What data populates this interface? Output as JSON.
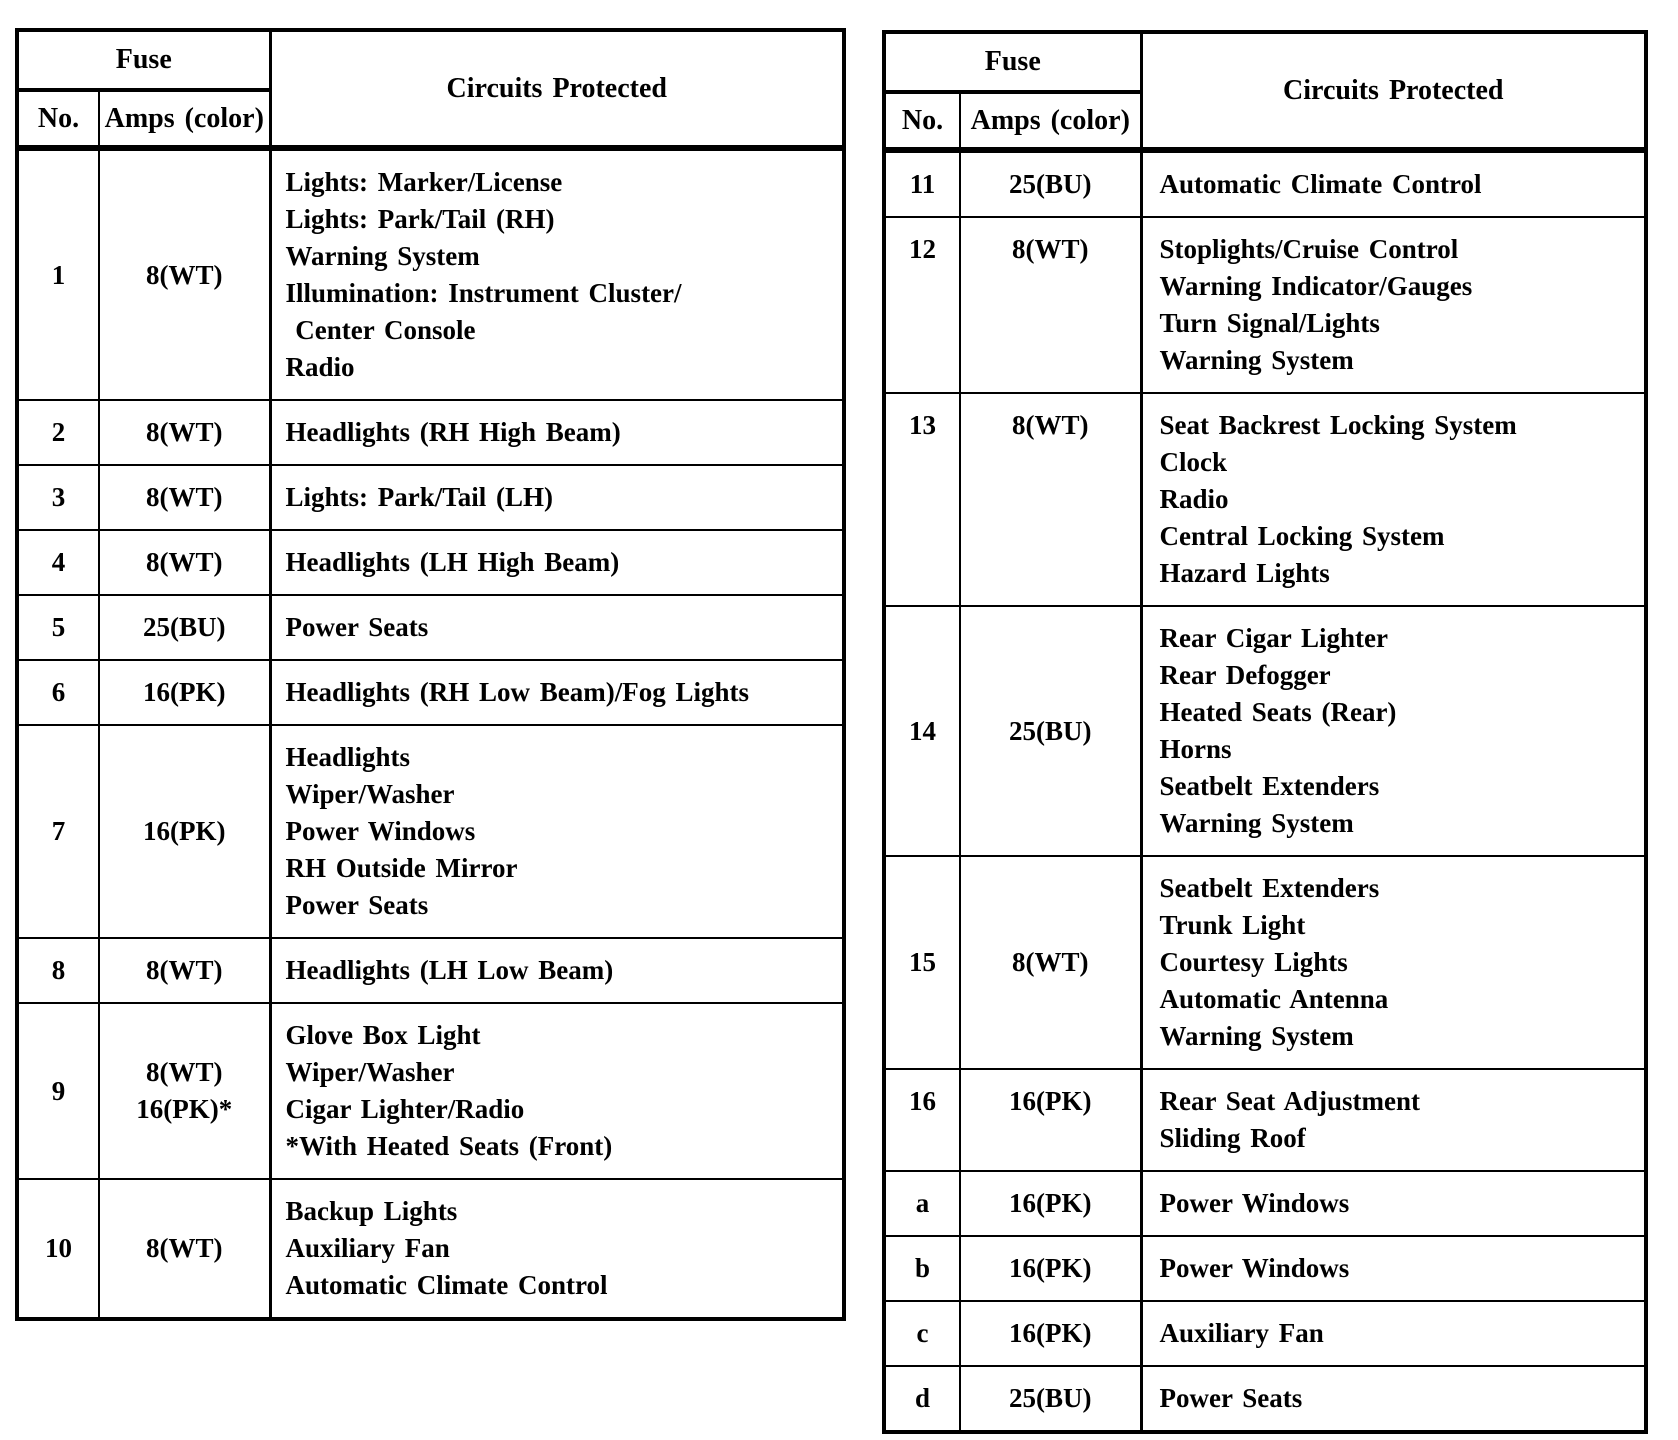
{
  "page": {
    "background_color": "#ffffff",
    "ink_color": "#000000",
    "description": "Scanned fuse box chart, two tables"
  },
  "tables": [
    {
      "name": "fuse-table-left",
      "header": {
        "fuse": "Fuse",
        "no": "No.",
        "amps": "Amps (color)",
        "circuits": "Circuits Protected"
      },
      "rows": [
        {
          "no": "1",
          "amps": [
            "8(WT)"
          ],
          "circuits": [
            "Lights: Marker/License",
            "Lights: Park/Tail (RH)",
            "Warning System",
            "Illumination: Instrument Cluster/",
            " Center Console",
            "Radio"
          ]
        },
        {
          "no": "2",
          "amps": [
            "8(WT)"
          ],
          "circuits": [
            "Headlights (RH High Beam)"
          ]
        },
        {
          "no": "3",
          "amps": [
            "8(WT)"
          ],
          "circuits": [
            "Lights: Park/Tail (LH)"
          ]
        },
        {
          "no": "4",
          "amps": [
            "8(WT)"
          ],
          "circuits": [
            "Headlights (LH High Beam)"
          ]
        },
        {
          "no": "5",
          "amps": [
            "25(BU)"
          ],
          "circuits": [
            "Power Seats"
          ]
        },
        {
          "no": "6",
          "amps": [
            "16(PK)"
          ],
          "circuits": [
            "Headlights (RH Low Beam)/Fog Lights"
          ]
        },
        {
          "no": "7",
          "amps": [
            "16(PK)"
          ],
          "circuits": [
            "Headlights",
            "Wiper/Washer",
            "Power Windows",
            "RH Outside Mirror",
            "Power Seats"
          ]
        },
        {
          "no": "8",
          "amps": [
            "8(WT)"
          ],
          "circuits": [
            "Headlights (LH Low Beam)"
          ]
        },
        {
          "no": "9",
          "amps": [
            "8(WT)",
            "16(PK)*"
          ],
          "circuits": [
            "Glove Box Light",
            "Wiper/Washer",
            "Cigar Lighter/Radio",
            "*With Heated Seats (Front)"
          ]
        },
        {
          "no": "10",
          "amps": [
            "8(WT)"
          ],
          "circuits": [
            "Backup Lights",
            "Auxiliary Fan",
            "Automatic Climate Control"
          ]
        }
      ]
    },
    {
      "name": "fuse-table-right",
      "header": {
        "fuse": "Fuse",
        "no": "No.",
        "amps": "Amps (color)",
        "circuits": "Circuits Protected"
      },
      "rows": [
        {
          "no": "11",
          "amps": [
            "25(BU)"
          ],
          "circuits": [
            "Automatic Climate Control"
          ]
        },
        {
          "no": "12",
          "amps": [
            "8(WT)"
          ],
          "circuits": [
            "Stoplights/Cruise Control",
            "Warning Indicator/Gauges",
            "Turn Signal/Lights",
            "Warning System"
          ]
        },
        {
          "no": "13",
          "amps": [
            "8(WT)"
          ],
          "circuits": [
            "Seat Backrest Locking System",
            "Clock",
            "Radio",
            "Central Locking System",
            "Hazard Lights"
          ]
        },
        {
          "no": "14",
          "amps": [
            "25(BU)"
          ],
          "circuits": [
            "Rear Cigar Lighter",
            "Rear Defogger",
            "Heated Seats (Rear)",
            "Horns",
            "Seatbelt Extenders",
            "Warning System"
          ]
        },
        {
          "no": "15",
          "amps": [
            "8(WT)"
          ],
          "circuits": [
            "Seatbelt Extenders",
            "Trunk Light",
            "Courtesy Lights",
            "Automatic Antenna",
            "Warning System"
          ]
        },
        {
          "no": "16",
          "amps": [
            "16(PK)"
          ],
          "circuits": [
            "Rear Seat Adjustment",
            "Sliding Roof"
          ]
        },
        {
          "no": "a",
          "amps": [
            "16(PK)"
          ],
          "circuits": [
            "Power Windows"
          ]
        },
        {
          "no": "b",
          "amps": [
            "16(PK)"
          ],
          "circuits": [
            "Power Windows"
          ]
        },
        {
          "no": "c",
          "amps": [
            "16(PK)"
          ],
          "circuits": [
            "Auxiliary Fan"
          ]
        },
        {
          "no": "d",
          "amps": [
            "25(BU)"
          ],
          "circuits": [
            "Power Seats"
          ]
        }
      ]
    }
  ]
}
